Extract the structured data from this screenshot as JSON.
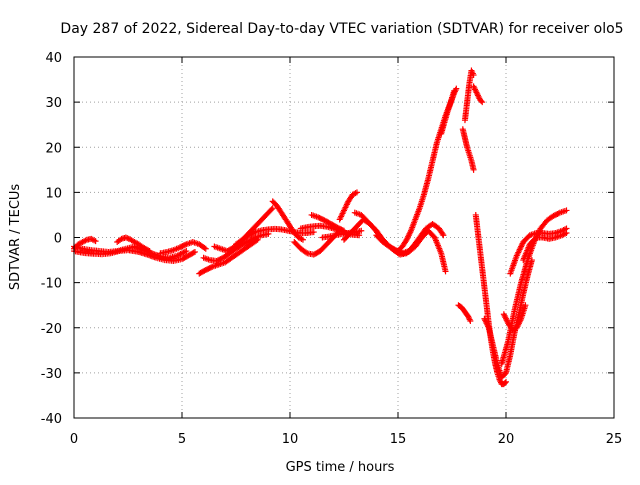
{
  "chart_data": {
    "type": "scatter",
    "title": "Day 287 of 2022, Sidereal Day-to-day VTEC variation (SDTVAR) for receiver olo5",
    "xlabel": "GPS time / hours",
    "ylabel": "SDTVAR / TECUs",
    "xlim": [
      0,
      25
    ],
    "ylim": [
      -40,
      40
    ],
    "xticks": [
      0,
      5,
      10,
      15,
      20,
      25
    ],
    "yticks": [
      -40,
      -30,
      -20,
      -10,
      0,
      10,
      20,
      30,
      40
    ],
    "grid": true,
    "marker": "+",
    "series_color": "#ff0000",
    "segments": [
      {
        "name": "early-low-a",
        "x": [
          0.0,
          0.3,
          0.6,
          0.9,
          1.3,
          1.7,
          2.1,
          2.5,
          3.0,
          3.4,
          3.8,
          4.2,
          4.6,
          5.0,
          5.3,
          5.6
        ],
        "y": [
          -3.0,
          -3.3,
          -3.5,
          -3.6,
          -3.7,
          -3.5,
          -3.0,
          -2.8,
          -3.2,
          -3.8,
          -4.5,
          -5.0,
          -5.2,
          -4.8,
          -4.0,
          -3.2
        ]
      },
      {
        "name": "early-low-b",
        "x": [
          0.0,
          0.4,
          0.8,
          1.2,
          1.6,
          2.0,
          2.4,
          2.8,
          3.2,
          3.6,
          4.0,
          4.4,
          4.8,
          5.2
        ],
        "y": [
          -2.0,
          -2.5,
          -2.8,
          -3.0,
          -3.2,
          -3.0,
          -2.5,
          -2.0,
          -2.8,
          -3.5,
          -4.2,
          -4.5,
          -4.0,
          -3.0
        ]
      },
      {
        "name": "early-bump",
        "x": [
          0.0,
          0.2,
          0.4,
          0.6,
          0.8,
          1.0
        ],
        "y": [
          -2.5,
          -1.5,
          -1.0,
          -0.5,
          -0.3,
          -0.8
        ]
      },
      {
        "name": "early-hump",
        "x": [
          2.0,
          2.2,
          2.4,
          2.6,
          2.8,
          3.0,
          3.2,
          3.5
        ],
        "y": [
          -1.0,
          -0.3,
          0.0,
          -0.4,
          -1.0,
          -1.5,
          -2.2,
          -3.0
        ]
      },
      {
        "name": "mid-dip",
        "x": [
          4.0,
          4.3,
          4.6,
          4.9,
          5.2,
          5.5,
          5.8,
          6.1
        ],
        "y": [
          -3.5,
          -3.2,
          -2.8,
          -2.2,
          -1.5,
          -1.0,
          -1.5,
          -2.5
        ]
      },
      {
        "name": "mid-low",
        "x": [
          5.8,
          6.1,
          6.4,
          6.7,
          7.0,
          7.3,
          7.6,
          7.9,
          8.2,
          8.5
        ],
        "y": [
          -8.0,
          -7.2,
          -6.5,
          -6.0,
          -5.5,
          -4.5,
          -3.5,
          -2.5,
          -1.5,
          -0.5
        ]
      },
      {
        "name": "mid-b",
        "x": [
          6.0,
          6.3,
          6.6,
          6.9,
          7.2,
          7.5,
          7.8,
          8.1,
          8.4,
          8.7,
          9.0
        ],
        "y": [
          -4.5,
          -5.0,
          -5.2,
          -4.5,
          -3.5,
          -2.5,
          -1.5,
          -0.8,
          0.0,
          0.5,
          0.8
        ]
      },
      {
        "name": "mid-c",
        "x": [
          6.5,
          6.8,
          7.1,
          7.4,
          7.7,
          8.0,
          8.3,
          8.6,
          8.9,
          9.2
        ],
        "y": [
          -2.0,
          -2.5,
          -3.0,
          -2.2,
          -1.0,
          0.5,
          2.0,
          3.5,
          5.0,
          6.5
        ]
      },
      {
        "name": "hour9-rise",
        "x": [
          7.5,
          7.8,
          8.1,
          8.4,
          8.7,
          9.0,
          9.3,
          9.6,
          9.9,
          10.2,
          10.5,
          10.8,
          11.1
        ],
        "y": [
          -1.5,
          -0.5,
          0.5,
          1.2,
          1.6,
          1.8,
          1.9,
          1.8,
          1.5,
          1.2,
          1.0,
          1.0,
          1.2
        ]
      },
      {
        "name": "hour9-peak",
        "x": [
          9.2,
          9.4,
          9.6,
          9.8,
          10.0,
          10.2,
          10.4,
          10.6
        ],
        "y": [
          8.0,
          7.0,
          5.5,
          4.0,
          2.5,
          1.0,
          0.0,
          -0.5
        ]
      },
      {
        "name": "hour10-dip",
        "x": [
          10.2,
          10.5,
          10.8,
          11.1,
          11.4,
          11.7,
          12.0,
          12.3
        ],
        "y": [
          -1.0,
          -2.5,
          -3.5,
          -3.8,
          -3.0,
          -1.5,
          0.0,
          1.5
        ]
      },
      {
        "name": "hour11",
        "x": [
          10.5,
          10.8,
          11.1,
          11.4,
          11.7,
          12.0,
          12.3,
          12.6,
          12.9,
          13.2
        ],
        "y": [
          2.0,
          2.3,
          2.5,
          2.6,
          2.4,
          2.0,
          1.5,
          1.0,
          0.6,
          0.5
        ]
      },
      {
        "name": "hour11-bump",
        "x": [
          11.0,
          11.3,
          11.6,
          11.9,
          12.2,
          12.5
        ],
        "y": [
          5.0,
          4.5,
          3.8,
          3.0,
          2.2,
          1.5
        ]
      },
      {
        "name": "hour12-flat",
        "x": [
          11.5,
          11.8,
          12.1,
          12.4,
          12.7,
          13.0,
          13.3
        ],
        "y": [
          0.0,
          0.2,
          0.5,
          0.8,
          1.0,
          1.2,
          1.5
        ]
      },
      {
        "name": "hour13-up",
        "x": [
          12.3,
          12.5,
          12.7,
          12.9,
          13.1
        ],
        "y": [
          4.0,
          6.0,
          8.0,
          9.5,
          10.0
        ]
      },
      {
        "name": "hour13-low",
        "x": [
          12.5,
          12.8,
          13.1,
          13.4,
          13.7,
          14.0,
          14.3,
          14.6,
          14.9,
          15.2,
          15.5,
          15.8,
          16.1
        ],
        "y": [
          -0.5,
          1.0,
          2.5,
          4.0,
          3.0,
          1.5,
          -0.5,
          -2.0,
          -3.0,
          -3.5,
          -3.2,
          -2.0,
          0.0
        ]
      },
      {
        "name": "hour14",
        "x": [
          13.0,
          13.3,
          13.6,
          13.9,
          14.2,
          14.5,
          14.8,
          15.1,
          15.4,
          15.7,
          16.0,
          16.3,
          16.6,
          16.9,
          17.1
        ],
        "y": [
          5.5,
          5.0,
          3.5,
          2.0,
          0.0,
          -1.5,
          -2.8,
          -3.8,
          -3.5,
          -2.0,
          0.0,
          2.0,
          3.0,
          2.0,
          0.5
        ]
      },
      {
        "name": "hour14-b",
        "x": [
          14.0,
          14.3,
          14.6,
          14.9,
          15.2,
          15.5,
          15.8,
          16.1,
          16.4,
          16.7,
          17.0,
          17.2
        ],
        "y": [
          0.5,
          -1.0,
          -2.0,
          -2.8,
          -3.5,
          -3.0,
          -1.5,
          0.0,
          1.5,
          0.0,
          -3.5,
          -7.5
        ]
      },
      {
        "name": "hour16-rise",
        "x": [
          15.0,
          15.2,
          15.4,
          15.6,
          15.8,
          16.0,
          16.2,
          16.4,
          16.6,
          16.8,
          17.0,
          17.2,
          17.4,
          17.6
        ],
        "y": [
          -3.0,
          -2.0,
          -0.5,
          1.5,
          4.0,
          6.5,
          9.5,
          13.0,
          17.0,
          21.0,
          24.0,
          27.0,
          29.5,
          32.5
        ]
      },
      {
        "name": "hour17-spike",
        "x": [
          17.0,
          17.15,
          17.3,
          17.45,
          17.6,
          17.7
        ],
        "y": [
          23.0,
          25.5,
          28.0,
          30.0,
          32.0,
          33.0
        ]
      },
      {
        "name": "hour18-top",
        "x": [
          18.1,
          18.2,
          18.3,
          18.4,
          18.5
        ],
        "y": [
          26.0,
          30.0,
          34.0,
          37.0,
          36.0
        ]
      },
      {
        "name": "hour18-slope",
        "x": [
          18.0,
          18.1,
          18.2,
          18.3,
          18.4,
          18.5
        ],
        "y": [
          24.0,
          22.0,
          20.0,
          18.5,
          17.0,
          15.0
        ]
      },
      {
        "name": "hour18-right",
        "x": [
          18.5,
          18.6,
          18.7,
          18.8,
          18.9
        ],
        "y": [
          33.5,
          32.5,
          31.5,
          30.5,
          30.0
        ]
      },
      {
        "name": "hour18-neg",
        "x": [
          17.8,
          17.95,
          18.1,
          18.25,
          18.35
        ],
        "y": [
          -15.0,
          -15.5,
          -16.5,
          -17.5,
          -18.5
        ]
      },
      {
        "name": "hour18-fall",
        "x": [
          18.6,
          18.7,
          18.8,
          18.9,
          19.0,
          19.1,
          19.2,
          19.3,
          19.4,
          19.5,
          19.6,
          19.7,
          19.8,
          19.9,
          20.0
        ],
        "y": [
          5.0,
          1.0,
          -3.0,
          -7.0,
          -11.0,
          -15.0,
          -19.0,
          -22.5,
          -25.5,
          -28.0,
          -30.0,
          -31.5,
          -32.5,
          -32.5,
          -32.0
        ]
      },
      {
        "name": "hour20-valley",
        "x": [
          19.0,
          19.2,
          19.4,
          19.6,
          19.8,
          20.0,
          20.2,
          20.4,
          20.6,
          20.8,
          21.0,
          21.2
        ],
        "y": [
          -18.0,
          -20.0,
          -24.0,
          -28.0,
          -31.0,
          -30.0,
          -26.0,
          -21.0,
          -17.0,
          -12.5,
          -8.5,
          -5.0
        ]
      },
      {
        "name": "hour20-rise",
        "x": [
          19.8,
          20.1,
          20.4,
          20.7,
          21.0,
          21.3,
          21.6,
          21.9,
          22.2,
          22.5,
          22.8
        ],
        "y": [
          -28.0,
          -23.0,
          -16.0,
          -10.0,
          -5.0,
          -1.0,
          2.0,
          3.8,
          4.8,
          5.5,
          6.0
        ]
      },
      {
        "name": "hour20-branch",
        "x": [
          19.9,
          20.1,
          20.3,
          20.5,
          20.7,
          20.9
        ],
        "y": [
          -17.0,
          -19.0,
          -20.5,
          -20.0,
          -18.0,
          -15.0
        ]
      },
      {
        "name": "hour21-upper",
        "x": [
          20.2,
          20.5,
          20.8,
          21.1,
          21.4,
          21.7,
          22.0,
          22.3,
          22.6,
          22.8
        ],
        "y": [
          -8.0,
          -4.0,
          -1.0,
          0.5,
          1.0,
          1.0,
          0.8,
          1.0,
          1.5,
          2.0
        ]
      },
      {
        "name": "hour21-lower",
        "x": [
          20.8,
          21.1,
          21.4,
          21.7,
          22.0,
          22.3,
          22.6,
          22.8
        ],
        "y": [
          -5.0,
          -1.5,
          0.0,
          0.0,
          -0.3,
          0.0,
          0.5,
          1.0
        ]
      }
    ]
  }
}
